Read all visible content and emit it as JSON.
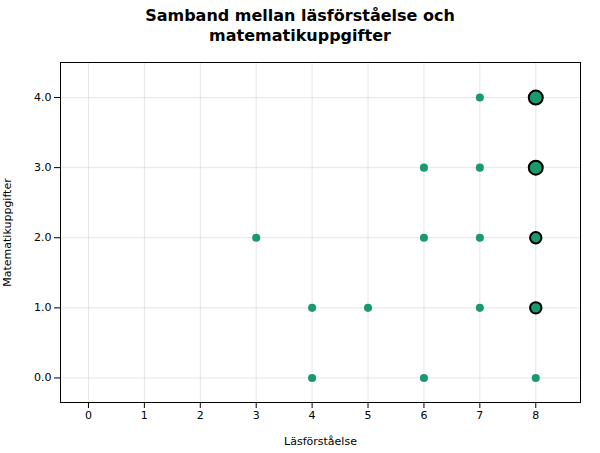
{
  "chart_data": {
    "type": "scatter",
    "title": "Samband mellan läsförståelse och\nmatematikuppgifter",
    "xlabel": "Läsförståelse",
    "ylabel": "Matematikuppgifter",
    "x": [
      3,
      4,
      4,
      5,
      6,
      6,
      6,
      7,
      7,
      7,
      7,
      8,
      8,
      8,
      8,
      8
    ],
    "values": [
      2,
      0,
      1,
      1,
      0,
      2,
      3,
      1,
      2,
      3,
      4,
      0,
      1,
      2,
      3,
      4
    ],
    "freq": [
      1,
      1,
      1,
      1,
      1,
      1,
      1,
      1,
      1,
      1,
      1,
      1,
      2,
      2,
      3,
      3
    ],
    "color": "#1a9a6c",
    "xlim": [
      -0.5,
      8.8
    ],
    "ylim": [
      -0.35,
      4.5
    ],
    "xticks": [
      0,
      1,
      2,
      3,
      4,
      5,
      6,
      7,
      8
    ],
    "yticks": [
      0,
      1,
      2,
      3,
      4
    ],
    "grid": true
  }
}
